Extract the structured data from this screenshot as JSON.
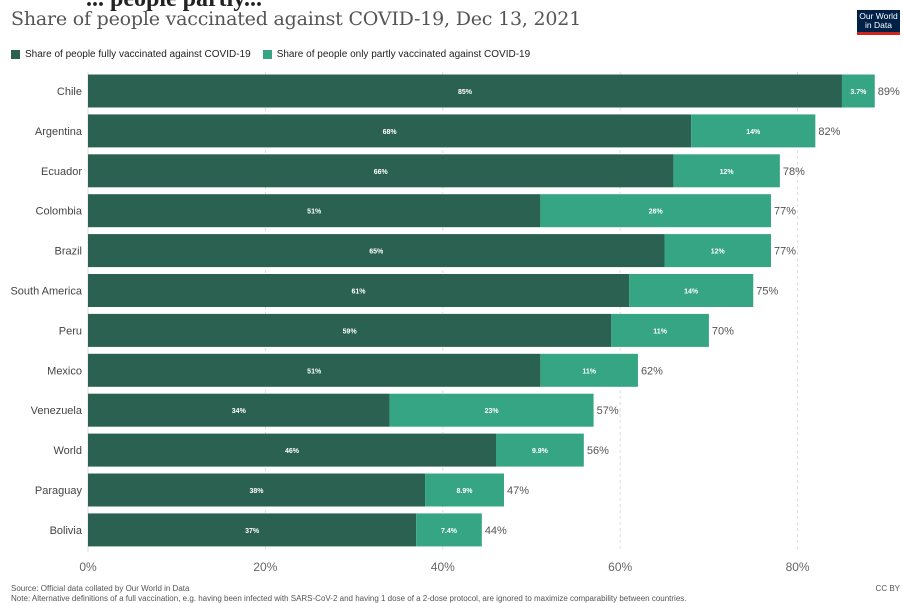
{
  "header": {
    "title_cut": "... people partly...",
    "subtitle": "Share of people vaccinated against COVID-19, Dec 13, 2021",
    "logo_line1": "Our World",
    "logo_line2": "in Data"
  },
  "footer": {
    "source": "Source: Official data collated by Our World in Data",
    "note": "Note: Alternative definitions of a full vaccination, e.g. having been infected with SARS-CoV-2 and having 1 dose of a 2-dose protocol, are ignored to maximize comparability between countries.",
    "license": "CC BY"
  },
  "colors": {
    "fully": "#2a6150",
    "partly": "#35a584"
  },
  "chart_data": {
    "type": "bar",
    "orientation": "horizontal",
    "stacked": true,
    "categories": [
      "Chile",
      "Argentina",
      "Ecuador",
      "Colombia",
      "Brazil",
      "South America",
      "Peru",
      "Mexico",
      "Venezuela",
      "World",
      "Paraguay",
      "Bolivia"
    ],
    "series": [
      {
        "name": "Share of people fully vaccinated against COVID-19",
        "values": [
          85,
          68,
          66,
          51,
          65,
          61,
          59,
          51,
          34,
          46,
          38,
          37
        ],
        "labels": [
          "85%",
          "68%",
          "66%",
          "51%",
          "65%",
          "61%",
          "59%",
          "51%",
          "34%",
          "46%",
          "38%",
          "37%"
        ]
      },
      {
        "name": "Share of people only partly vaccinated against COVID-19",
        "values": [
          3.7,
          14,
          12,
          26,
          12,
          14,
          11,
          11,
          23,
          9.9,
          8.9,
          7.4
        ],
        "labels": [
          "3.7%",
          "14%",
          "12%",
          "26%",
          "12%",
          "14%",
          "11%",
          "11%",
          "23%",
          "9.9%",
          "8.9%",
          "7.4%"
        ]
      }
    ],
    "total_labels": [
      "89%",
      "82%",
      "78%",
      "77%",
      "77%",
      "75%",
      "70%",
      "62%",
      "57%",
      "56%",
      "47%",
      "44%"
    ],
    "xlim": [
      0,
      90
    ],
    "xticks": [
      0,
      20,
      40,
      60,
      80
    ],
    "xtick_labels": [
      "0%",
      "20%",
      "40%",
      "60%",
      "80%"
    ],
    "grid": true,
    "legend_position": "top-left"
  }
}
